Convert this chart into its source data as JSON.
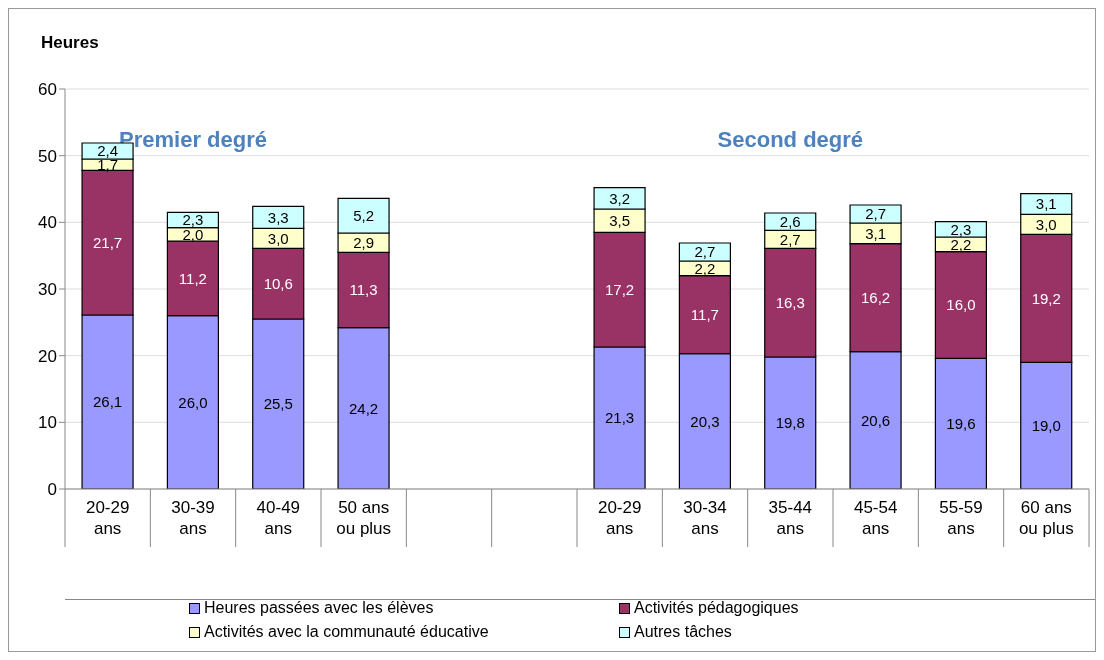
{
  "chart_data": {
    "type": "bar",
    "stacked": true,
    "ylabel": "Heures",
    "categories": [
      "20-29 ans",
      "30-39 ans",
      "40-49 ans",
      "50 ans ou plus",
      null,
      null,
      "20-29 ans",
      "30-34 ans",
      "35-44 ans",
      "45-54 ans",
      "55-59 ans",
      "60 ans ou plus"
    ],
    "series": [
      {
        "name": "Heures passées avec les élèves",
        "color": "#9999ff",
        "values": [
          26.1,
          26.0,
          25.5,
          24.2,
          null,
          null,
          21.3,
          20.3,
          19.8,
          20.6,
          19.6,
          19.0
        ],
        "value_labels": [
          "26,1",
          "26,0",
          "25,5",
          "24,2",
          null,
          null,
          "21,3",
          "20,3",
          "19,8",
          "20,6",
          "19,6",
          "19,0"
        ]
      },
      {
        "name": "Activités pédagogiques",
        "color": "#993366",
        "values": [
          21.7,
          11.2,
          10.6,
          11.3,
          null,
          null,
          17.2,
          11.7,
          16.3,
          16.2,
          16.0,
          19.2
        ],
        "value_labels": [
          "21,7",
          "11,2",
          "10,6",
          "11,3",
          null,
          null,
          "17,2",
          "11,7",
          "16,3",
          "16,2",
          "16,0",
          "19,2"
        ]
      },
      {
        "name": "Activités avec la communauté éducative",
        "color": "#ffffcc",
        "values": [
          1.7,
          2.0,
          3.0,
          2.9,
          null,
          null,
          3.5,
          2.2,
          2.7,
          3.1,
          2.2,
          3.0
        ],
        "value_labels": [
          "1,7",
          "2,0",
          "3,0",
          "2,9",
          null,
          null,
          "3,5",
          "2,2",
          "2,7",
          "3,1",
          "2,2",
          "3,0"
        ]
      },
      {
        "name": "Autres tâches",
        "color": "#ccffff",
        "values": [
          2.4,
          2.3,
          3.3,
          5.2,
          null,
          null,
          3.2,
          2.7,
          2.6,
          2.7,
          2.3,
          3.1
        ],
        "value_labels": [
          "2,4",
          "2,3",
          "3,3",
          "5,2",
          null,
          null,
          "3,2",
          "2,7",
          "2,6",
          "2,7",
          "2,3",
          "3,1"
        ]
      }
    ],
    "annotations": [
      "Premier degré",
      "Second degré"
    ],
    "ylim": [
      0,
      60
    ],
    "yticks": [
      0,
      10,
      20,
      30,
      40,
      50,
      60
    ],
    "grid": "y",
    "legend": "bottom"
  }
}
